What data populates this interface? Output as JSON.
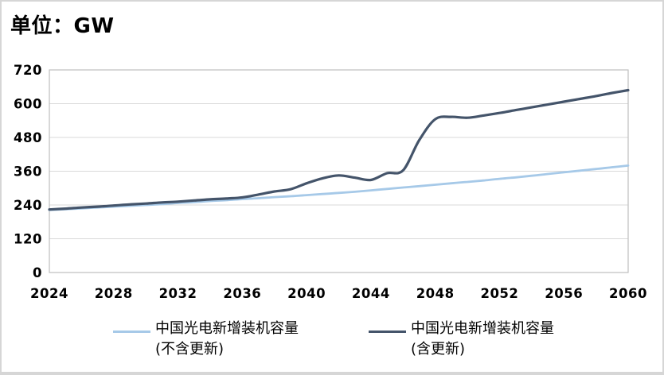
{
  "title": "单位：GW",
  "colors": {
    "grid": "#D9D9D9",
    "plot_border": "#BFBFBF",
    "page_border": "#D6D6D6",
    "text": "#000000",
    "series_excluding": "#A6C9E8",
    "series_including": "#44546A"
  },
  "legend": [
    {
      "label": "中国光电新增装机容量",
      "sublabel": "(不含更新)",
      "color": "#A6C9E8"
    },
    {
      "label": "中国光电新增装机容量",
      "sublabel": "(含更新)",
      "color": "#44546A"
    }
  ],
  "chart_data": {
    "type": "line",
    "title": "单位：GW",
    "xlabel": "",
    "ylabel": "GW",
    "ylim": [
      0,
      720
    ],
    "yticks": [
      0,
      120,
      240,
      360,
      480,
      600,
      720
    ],
    "xticks": [
      2024,
      2028,
      2032,
      2036,
      2040,
      2044,
      2048,
      2052,
      2056,
      2060
    ],
    "grid": "horizontal",
    "legend_position": "bottom",
    "x": [
      2024,
      2025,
      2026,
      2027,
      2028,
      2029,
      2030,
      2031,
      2032,
      2033,
      2034,
      2035,
      2036,
      2037,
      2038,
      2039,
      2040,
      2041,
      2042,
      2043,
      2044,
      2045,
      2046,
      2047,
      2048,
      2049,
      2050,
      2051,
      2052,
      2053,
      2054,
      2055,
      2056,
      2057,
      2058,
      2059,
      2060
    ],
    "series": [
      {
        "key": "excluding-renewal",
        "name": "中国光电新增装机容量(不含更新)",
        "color": "#A6C9E8",
        "smooth": true,
        "values": [
          222,
          225,
          228,
          231,
          234,
          237,
          240,
          243,
          247,
          250,
          254,
          257,
          261,
          264,
          268,
          271,
          275,
          279,
          283,
          287,
          292,
          297,
          302,
          307,
          312,
          317,
          322,
          327,
          333,
          338,
          344,
          350,
          356,
          362,
          368,
          374,
          380
        ]
      },
      {
        "key": "including-renewal",
        "name": "中国光电新增装机容量(含更新)",
        "color": "#44546A",
        "smooth": true,
        "values": [
          224,
          227,
          231,
          234,
          238,
          242,
          245,
          249,
          252,
          256,
          260,
          263,
          267,
          277,
          288,
          296,
          317,
          335,
          345,
          337,
          329,
          353,
          363,
          470,
          545,
          553,
          550,
          558,
          567,
          577,
          587,
          597,
          607,
          617,
          627,
          638,
          648
        ]
      }
    ]
  }
}
